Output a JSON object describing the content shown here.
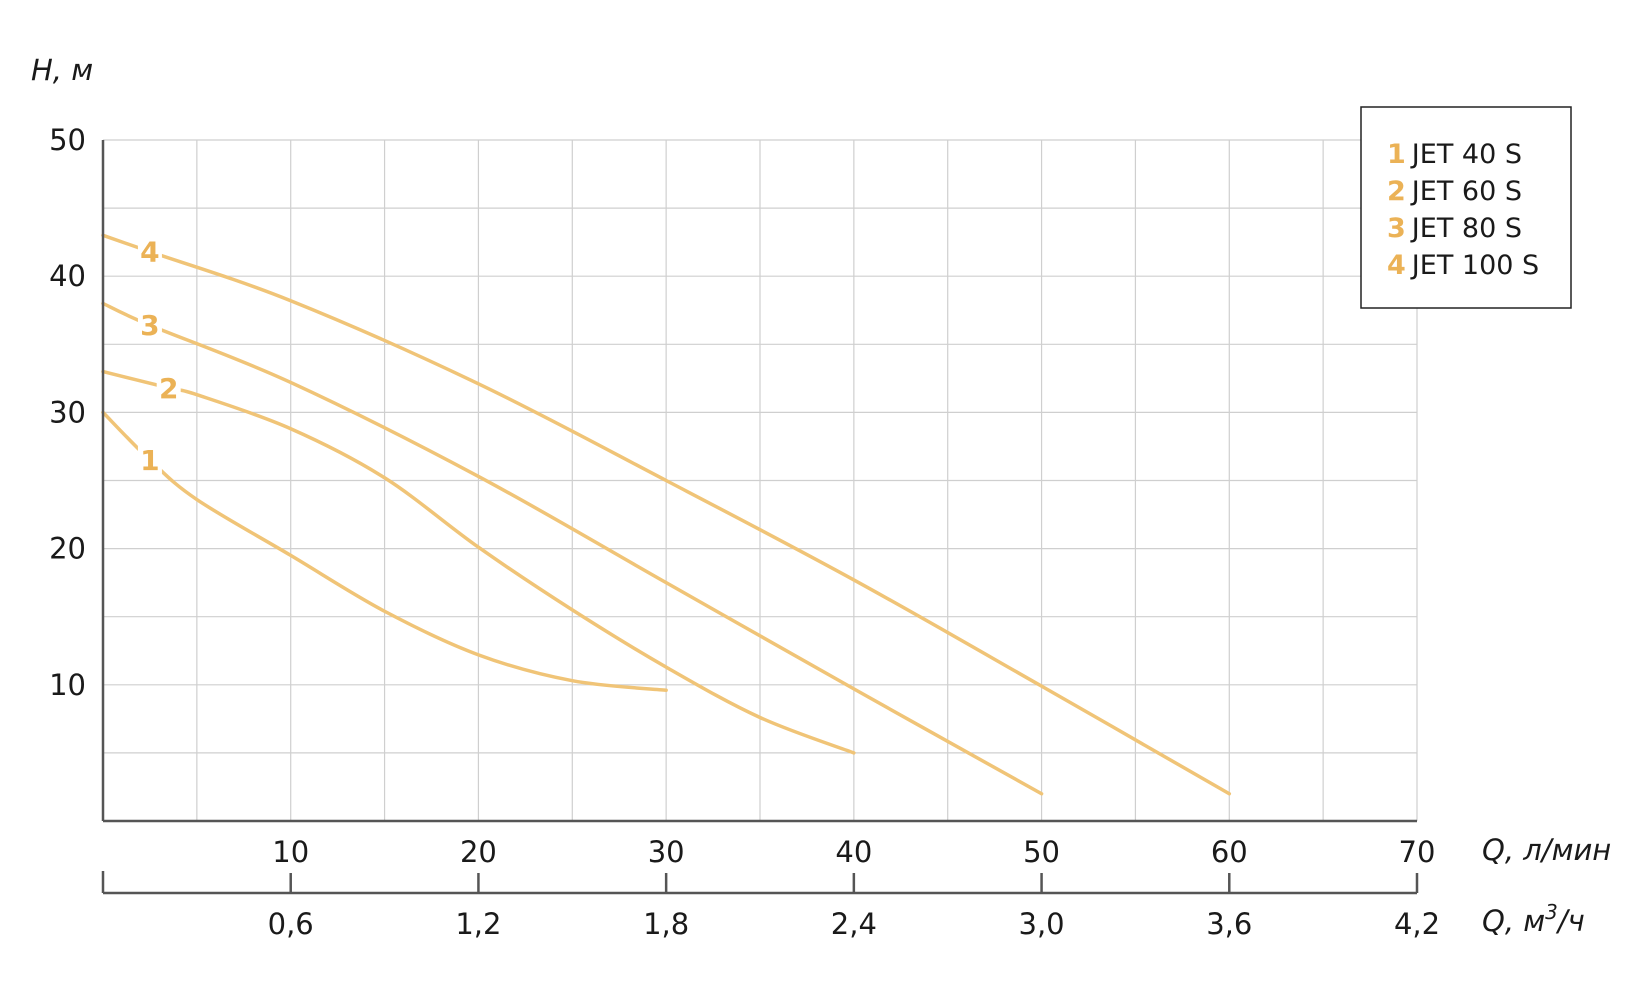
{
  "chart_data": {
    "type": "line",
    "ylabel": "H, м",
    "xlabel": "Q, л/мин",
    "x2label_prefix": "Q, м",
    "x2label_sup": "3",
    "x2label_suffix": "/ч",
    "xlim": [
      0,
      70
    ],
    "ylim": [
      0,
      50
    ],
    "grid": true,
    "legend_position": "top-right",
    "y_ticks": [
      {
        "value": 10,
        "label": "10"
      },
      {
        "value": 20,
        "label": "20"
      },
      {
        "value": 30,
        "label": "30"
      },
      {
        "value": 40,
        "label": "40"
      },
      {
        "value": 50,
        "label": "50"
      }
    ],
    "x_ticks": [
      {
        "value": 10,
        "label": "10"
      },
      {
        "value": 20,
        "label": "20"
      },
      {
        "value": 30,
        "label": "30"
      },
      {
        "value": 40,
        "label": "40"
      },
      {
        "value": 50,
        "label": "50"
      },
      {
        "value": 60,
        "label": "60"
      },
      {
        "value": 70,
        "label": "70"
      }
    ],
    "x2_ticks": [
      {
        "value": 10,
        "label": "0,6"
      },
      {
        "value": 20,
        "label": "1,2"
      },
      {
        "value": 30,
        "label": "1,8"
      },
      {
        "value": 40,
        "label": "2,4"
      },
      {
        "value": 50,
        "label": "3,0"
      },
      {
        "value": 60,
        "label": "3,6"
      },
      {
        "value": 70,
        "label": "4,2"
      }
    ],
    "series": [
      {
        "name": "JET 40 S",
        "marker": "1",
        "label_x": 2.5,
        "points": [
          [
            0,
            30
          ],
          [
            2.5,
            26.5
          ],
          [
            5,
            23.6
          ],
          [
            10,
            19.5
          ],
          [
            15,
            15.4
          ],
          [
            20,
            12.2
          ],
          [
            25,
            10.3
          ],
          [
            30,
            9.6
          ]
        ]
      },
      {
        "name": "JET 60 S",
        "marker": "2",
        "label_x": 3.5,
        "points": [
          [
            0,
            33
          ],
          [
            3.5,
            31.8
          ],
          [
            5,
            31.3
          ],
          [
            10,
            28.8
          ],
          [
            15,
            25.2
          ],
          [
            20,
            20.1
          ],
          [
            25,
            15.5
          ],
          [
            30,
            11.3
          ],
          [
            35,
            7.6
          ],
          [
            40,
            5.0
          ]
        ]
      },
      {
        "name": "JET 80 S",
        "marker": "3",
        "label_x": 2.5,
        "points": [
          [
            0,
            38
          ],
          [
            2.5,
            36.4
          ],
          [
            10,
            32.2
          ],
          [
            20,
            25.3
          ],
          [
            30,
            17.5
          ],
          [
            40,
            9.7
          ],
          [
            50,
            2.0
          ]
        ]
      },
      {
        "name": "JET 100 S",
        "marker": "4",
        "label_x": 2.5,
        "points": [
          [
            0,
            43
          ],
          [
            2.5,
            41.8
          ],
          [
            10,
            38.2
          ],
          [
            20,
            32.1
          ],
          [
            30,
            25.0
          ],
          [
            40,
            17.7
          ],
          [
            50,
            9.9
          ],
          [
            60,
            2.0
          ]
        ]
      }
    ]
  },
  "colors": {
    "curve": "#f0c477",
    "label": "#ebb256",
    "grid": "#cfcfcf",
    "axis": "#555555"
  }
}
